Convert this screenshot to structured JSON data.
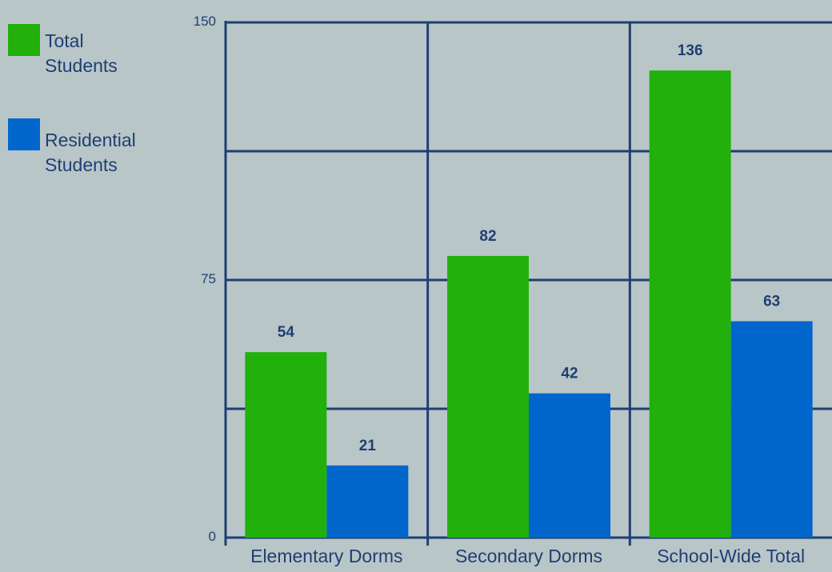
{
  "chart_data": {
    "type": "bar",
    "title": "",
    "xlabel": "",
    "ylabel": "",
    "ylim": [
      0,
      150
    ],
    "y_ticks": [
      {
        "label": "150",
        "value": 150
      },
      {
        "label": "75",
        "value": 75
      },
      {
        "label": "0",
        "value": 0
      }
    ],
    "gridlines": [
      0,
      37.5,
      75,
      112.5,
      150
    ],
    "categories": [
      "Elementary Dorms",
      "Secondary Dorms",
      "School-Wide Total"
    ],
    "series": [
      {
        "name": "Total\nStudents",
        "color": "#22b00d",
        "values": [
          54,
          82,
          136
        ],
        "labels": [
          "54",
          "82",
          "136"
        ]
      },
      {
        "name": "Residential\nStudents",
        "color": "#0066cc",
        "values": [
          21,
          42,
          63
        ],
        "labels": [
          "21",
          "42",
          "63"
        ]
      }
    ],
    "legend_position": "left",
    "grid": true
  },
  "colors": {
    "background": "#b9c6c8",
    "axis": "#1f3f73",
    "text": "#1f3f73"
  }
}
